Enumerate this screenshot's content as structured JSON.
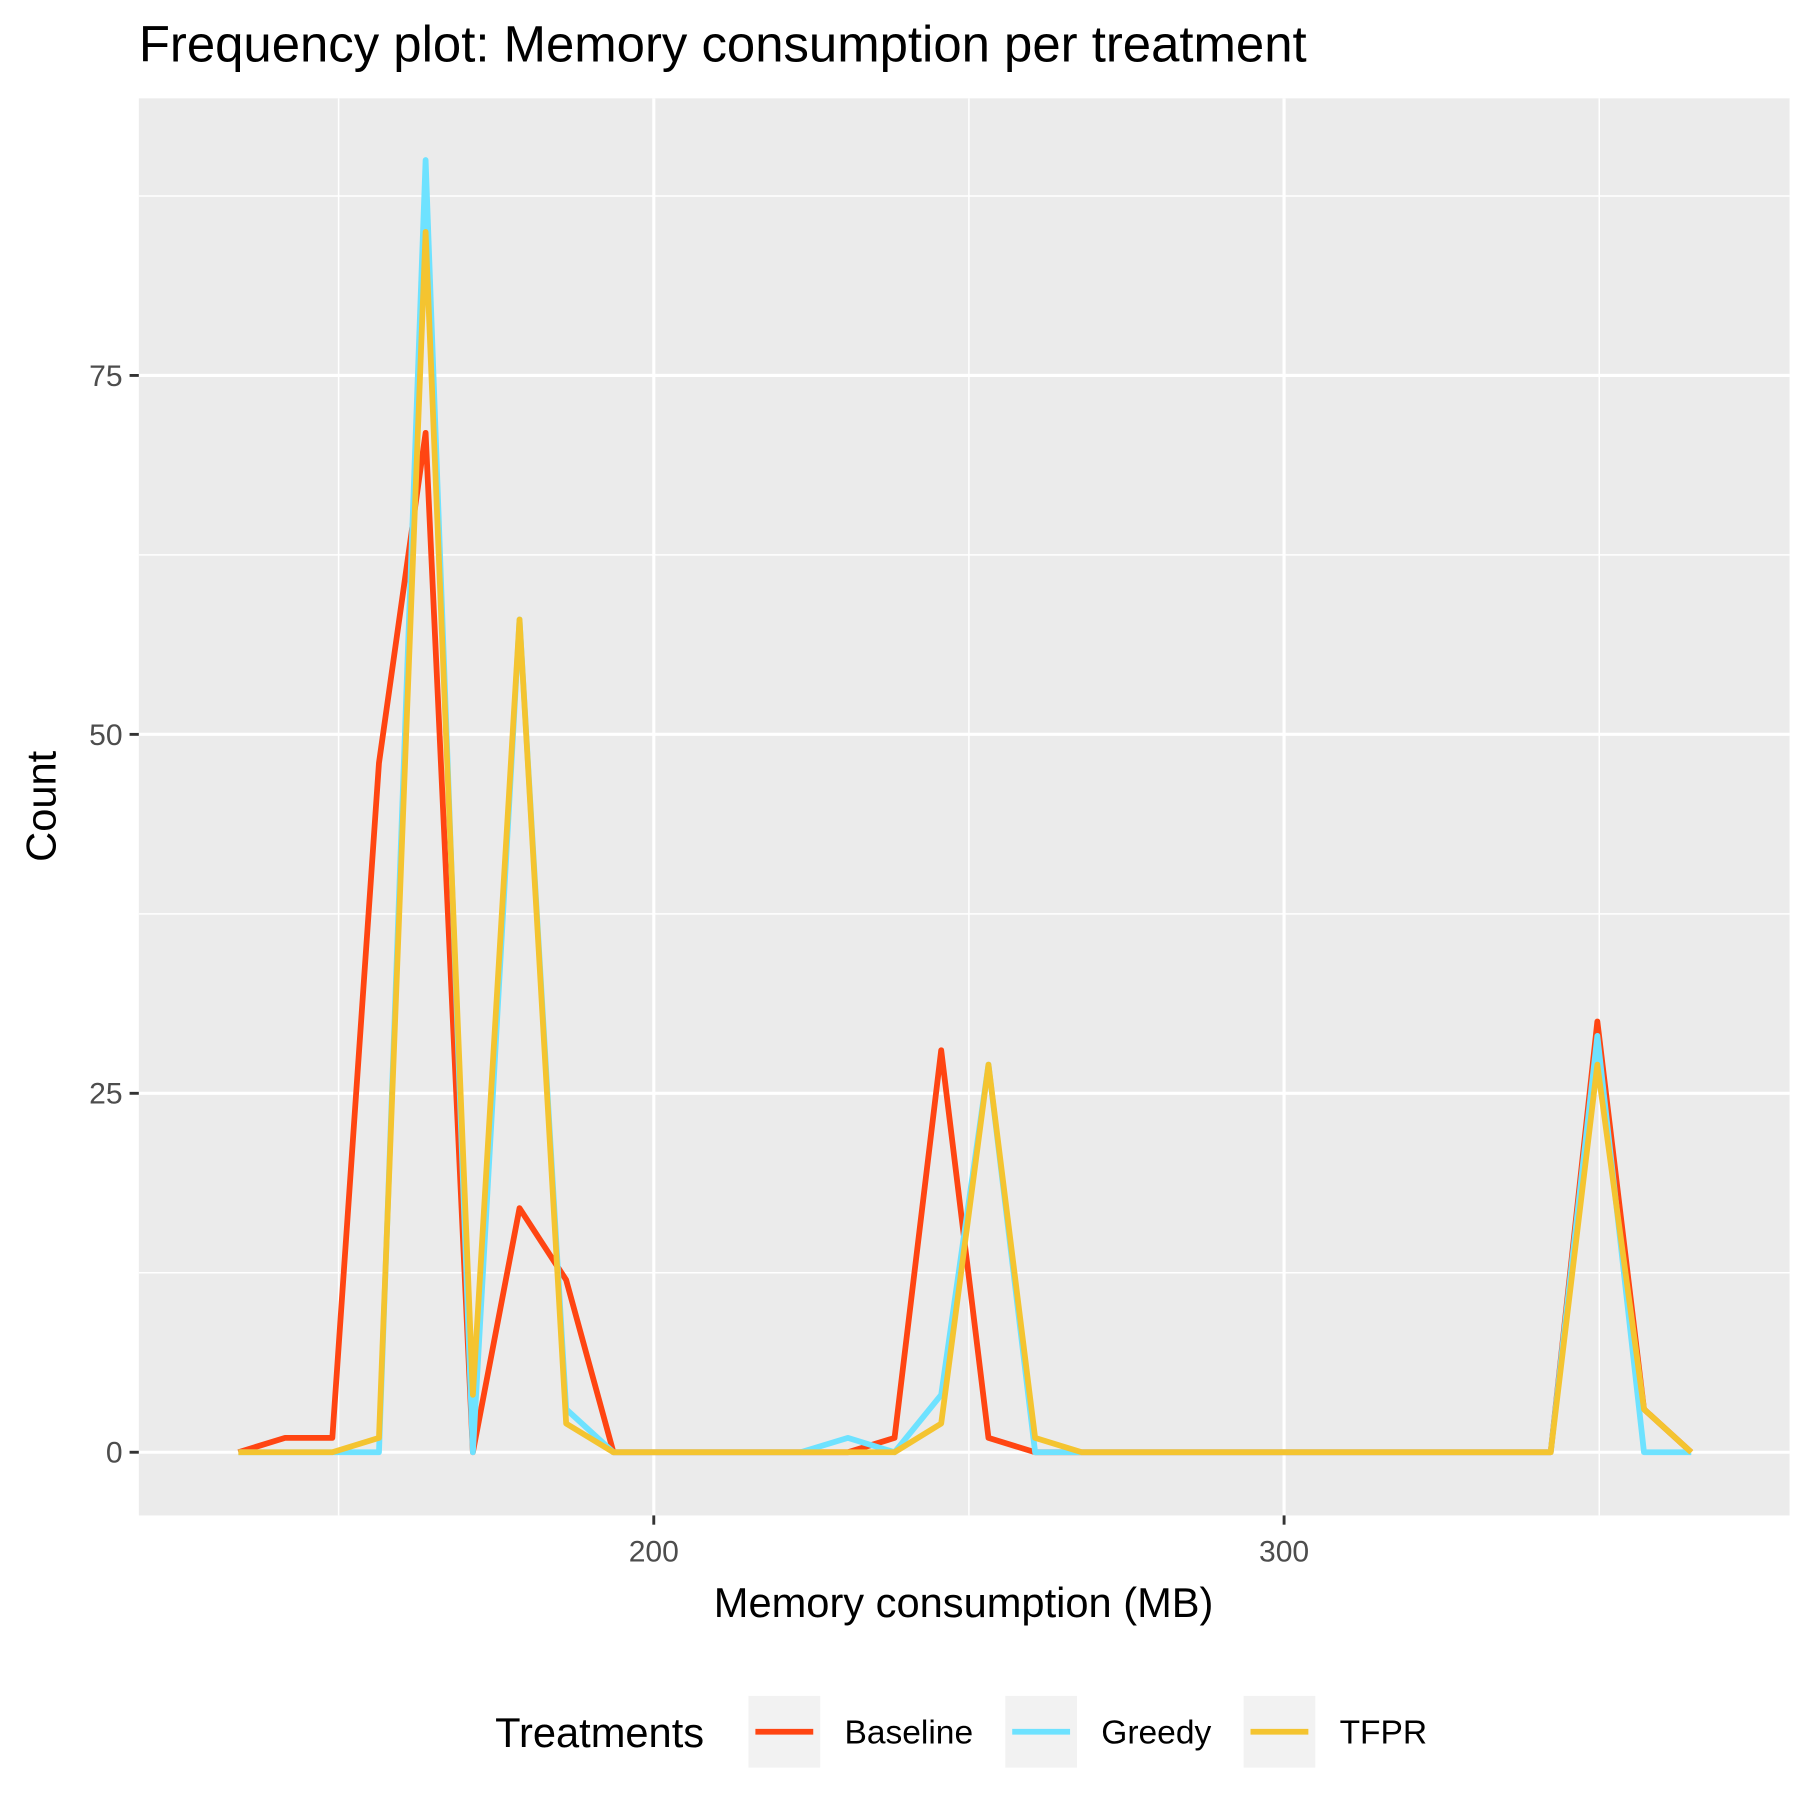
{
  "chart_data": {
    "type": "line",
    "title": "Frequency plot: Memory consumption per treatment",
    "x_label": "Memory consumption (MB)",
    "y_label": "Count",
    "legend_title": "Treatments",
    "legend_position": "bottom",
    "grid": true,
    "xlim": [
      118.3,
      380.2
    ],
    "ylim": [
      -4.4,
      94.3
    ],
    "xticks": [
      200,
      300
    ],
    "yticks": [
      0,
      25,
      50,
      75
    ],
    "xminor": [
      150,
      250,
      350
    ],
    "yminor": [
      12.5,
      37.5,
      62.5,
      87.5
    ],
    "x": [
      134.1,
      141.5,
      149.0,
      156.4,
      163.8,
      171.3,
      178.7,
      186.1,
      193.6,
      201.0,
      208.5,
      215.9,
      223.3,
      230.8,
      238.2,
      245.6,
      253.1,
      260.5,
      267.9,
      275.4,
      282.8,
      290.2,
      297.7,
      305.1,
      312.5,
      320.0,
      327.4,
      334.8,
      342.3,
      349.7,
      357.1,
      364.6
    ],
    "series": [
      {
        "name": "Baseline",
        "color": "#FF4512",
        "values": [
          0,
          1,
          1,
          48,
          71,
          0,
          17,
          12,
          0,
          0,
          0,
          0,
          0,
          0,
          1,
          28,
          1,
          0,
          0,
          0,
          0,
          0,
          0,
          0,
          0,
          0,
          0,
          0,
          0,
          30,
          3,
          0
        ]
      },
      {
        "name": "Greedy",
        "color": "#6EE2FF",
        "values": [
          0,
          0,
          0,
          0,
          90,
          0,
          58,
          3,
          0,
          0,
          0,
          0,
          0,
          1,
          0,
          4,
          27,
          0,
          0,
          0,
          0,
          0,
          0,
          0,
          0,
          0,
          0,
          0,
          0,
          29,
          0,
          0
        ]
      },
      {
        "name": "TFPR",
        "color": "#F4C430",
        "values": [
          0,
          0,
          0,
          1,
          85,
          4,
          58,
          2,
          0,
          0,
          0,
          0,
          0,
          0,
          0,
          2,
          27,
          1,
          0,
          0,
          0,
          0,
          0,
          0,
          0,
          0,
          0,
          0,
          0,
          27,
          3,
          0
        ]
      }
    ]
  }
}
